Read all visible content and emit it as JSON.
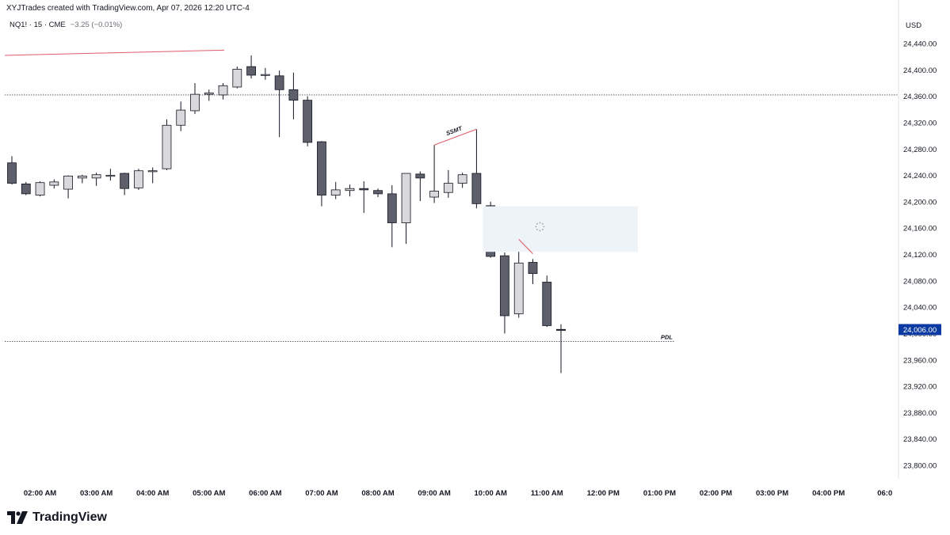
{
  "header": {
    "attribution": "XYJTrades created with TradingView.com, Apr 07, 2026 12:20 UTC-4",
    "symbol": "NQ1! · 15 · CME",
    "change": "−3.25 (−0.01%)"
  },
  "footer": {
    "brand": "TradingView"
  },
  "colors": {
    "bear": "#5d606b",
    "bull": "#d9d9db",
    "wick": "#131722",
    "fvg": "#eef3f7",
    "ssmt_line": "#e05a6a",
    "price_label_bg": "#0b3aa3",
    "price_label_text": "#ffffff"
  },
  "chart_data": {
    "type": "candlestick",
    "currency_label": "USD",
    "timeframe_minutes": 15,
    "y_axis": {
      "range": [
        23780,
        24470
      ],
      "ticks": [
        "24,440.00",
        "24,400.00",
        "24,360.00",
        "24,320.00",
        "24,280.00",
        "24,240.00",
        "24,200.00",
        "24,160.00",
        "24,120.00",
        "24,080.00",
        "24,040.00",
        "24,000.00",
        "23,960.00",
        "23,920.00",
        "23,880.00",
        "23,840.00",
        "23,800.00"
      ]
    },
    "x_axis": {
      "ticks": [
        "02:00 AM",
        "03:00 AM",
        "04:00 AM",
        "05:00 AM",
        "06:00 AM",
        "07:00 AM",
        "08:00 AM",
        "09:00 AM",
        "10:00 AM",
        "11:00 AM",
        "12:00 PM",
        "01:00 PM",
        "02:00 PM",
        "03:00 PM",
        "04:00 PM",
        "06:0"
      ]
    },
    "current_price": {
      "value": 24006,
      "label": "24,006.00"
    },
    "candles": [
      {
        "time": "01:30",
        "open": 24259,
        "high": 24269,
        "low": 24226,
        "close": 24228
      },
      {
        "time": "01:45",
        "open": 24227,
        "high": 24230,
        "low": 24210,
        "close": 24212
      },
      {
        "time": "02:00",
        "open": 24210,
        "high": 24231,
        "low": 24208,
        "close": 24229
      },
      {
        "time": "02:15",
        "open": 24225,
        "high": 24234,
        "low": 24220,
        "close": 24230
      },
      {
        "time": "02:30",
        "open": 24219,
        "high": 24240,
        "low": 24205,
        "close": 24239
      },
      {
        "time": "02:45",
        "open": 24236,
        "high": 24241,
        "low": 24228,
        "close": 24239
      },
      {
        "time": "03:00",
        "open": 24236,
        "high": 24244,
        "low": 24224,
        "close": 24241
      },
      {
        "time": "03:15",
        "open": 24240,
        "high": 24250,
        "low": 24232,
        "close": 24240
      },
      {
        "time": "03:30",
        "open": 24243,
        "high": 24244,
        "low": 24210,
        "close": 24220
      },
      {
        "time": "03:45",
        "open": 24221,
        "high": 24250,
        "low": 24218,
        "close": 24247
      },
      {
        "time": "04:00",
        "open": 24246,
        "high": 24252,
        "low": 24228,
        "close": 24247
      },
      {
        "time": "04:15",
        "open": 24250,
        "high": 24325,
        "low": 24248,
        "close": 24316
      },
      {
        "time": "04:30",
        "open": 24316,
        "high": 24352,
        "low": 24307,
        "close": 24339
      },
      {
        "time": "04:45",
        "open": 24338,
        "high": 24380,
        "low": 24333,
        "close": 24363
      },
      {
        "time": "05:00",
        "open": 24363,
        "high": 24370,
        "low": 24353,
        "close": 24365
      },
      {
        "time": "05:15",
        "open": 24362,
        "high": 24380,
        "low": 24355,
        "close": 24376
      },
      {
        "time": "05:30",
        "open": 24374,
        "high": 24405,
        "low": 24372,
        "close": 24401
      },
      {
        "time": "05:45",
        "open": 24405,
        "high": 24422,
        "low": 24387,
        "close": 24392
      },
      {
        "time": "06:00",
        "open": 24393,
        "high": 24403,
        "low": 24385,
        "close": 24393
      },
      {
        "time": "06:15",
        "open": 24391,
        "high": 24399,
        "low": 24298,
        "close": 24370
      },
      {
        "time": "06:30",
        "open": 24370,
        "high": 24396,
        "low": 24325,
        "close": 24354
      },
      {
        "time": "06:45",
        "open": 24354,
        "high": 24360,
        "low": 24284,
        "close": 24290
      },
      {
        "time": "07:00",
        "open": 24291,
        "high": 24292,
        "low": 24193,
        "close": 24210
      },
      {
        "time": "07:15",
        "open": 24210,
        "high": 24230,
        "low": 24204,
        "close": 24218
      },
      {
        "time": "07:30",
        "open": 24217,
        "high": 24226,
        "low": 24208,
        "close": 24220
      },
      {
        "time": "07:45",
        "open": 24220,
        "high": 24231,
        "low": 24183,
        "close": 24218
      },
      {
        "time": "08:00",
        "open": 24217,
        "high": 24220,
        "low": 24207,
        "close": 24212
      },
      {
        "time": "08:15",
        "open": 24212,
        "high": 24225,
        "low": 24131,
        "close": 24168
      },
      {
        "time": "08:30",
        "open": 24168,
        "high": 24242,
        "low": 24136,
        "close": 24243
      },
      {
        "time": "08:45",
        "open": 24242,
        "high": 24246,
        "low": 24201,
        "close": 24236
      },
      {
        "time": "09:00",
        "open": 24207,
        "high": 24286,
        "low": 24198,
        "close": 24216
      },
      {
        "time": "09:15",
        "open": 24214,
        "high": 24248,
        "low": 24206,
        "close": 24228
      },
      {
        "time": "09:30",
        "open": 24228,
        "high": 24244,
        "low": 24221,
        "close": 24241
      },
      {
        "time": "09:45",
        "open": 24243,
        "high": 24310,
        "low": 24190,
        "close": 24197
      },
      {
        "time": "10:00",
        "open": 24194,
        "high": 24200,
        "low": 24115,
        "close": 24117
      },
      {
        "time": "10:15",
        "open": 24118,
        "high": 24123,
        "low": 24000,
        "close": 24027
      },
      {
        "time": "10:30",
        "open": 24030,
        "high": 24128,
        "low": 24024,
        "close": 24107
      },
      {
        "time": "10:45",
        "open": 24108,
        "high": 24113,
        "low": 24075,
        "close": 24091
      },
      {
        "time": "11:00",
        "open": 24078,
        "high": 24088,
        "low": 24010,
        "close": 24012
      },
      {
        "time": "11:15",
        "open": 24006,
        "high": 24014,
        "low": 23940,
        "close": 24006
      }
    ],
    "levels": [
      {
        "name": "upper dotted level",
        "price": 24362,
        "style": "dotted"
      },
      {
        "name": "PDL",
        "price": 23988,
        "style": "dotted",
        "label": "PDL"
      }
    ],
    "annotations": [
      {
        "type": "text",
        "text": "SSMT",
        "style": "bold-italic"
      },
      {
        "type": "ssmt-line",
        "points": [
          [
            "09:00",
            24286
          ],
          [
            "09:45",
            24310
          ]
        ]
      },
      {
        "type": "ssmt-line",
        "points": [
          [
            "10:30",
            24143
          ],
          [
            "10:45",
            24121
          ]
        ]
      },
      {
        "type": "trend-line",
        "points": [
          [
            "01:30",
            24422
          ],
          [
            "05:00",
            24430
          ]
        ]
      },
      {
        "type": "fvg-box",
        "top": 24193,
        "bottom": 24124,
        "from": "09:45",
        "to": "12:30"
      }
    ],
    "labels": {
      "pdl": "PDL",
      "ssmt": "SSMT"
    }
  }
}
